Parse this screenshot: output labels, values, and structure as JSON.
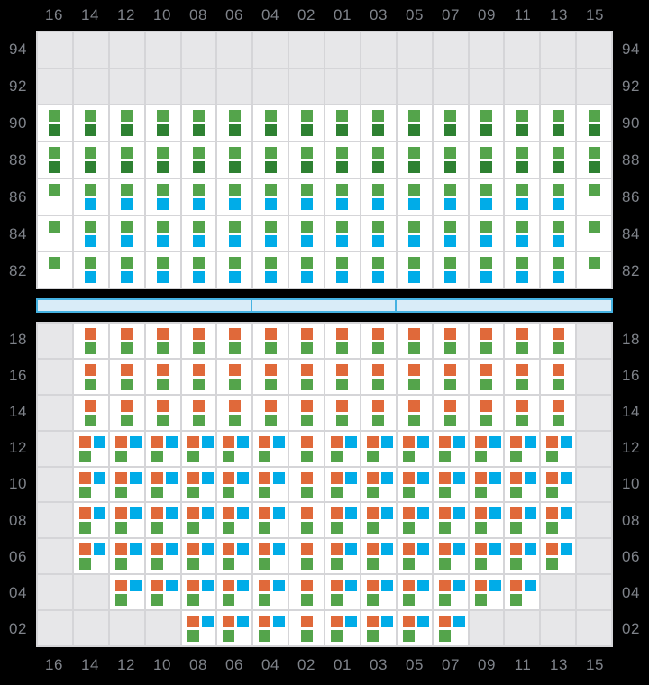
{
  "chart_data": {
    "type": "heatmap",
    "title": "",
    "columns": [
      "16",
      "14",
      "12",
      "10",
      "08",
      "06",
      "04",
      "02",
      "01",
      "03",
      "05",
      "07",
      "09",
      "11",
      "13",
      "15"
    ],
    "sections": [
      {
        "name": "upper",
        "tiers": [
          "94",
          "92",
          "90",
          "88",
          "86",
          "84",
          "82"
        ],
        "rows": [
          [
            "E",
            "E",
            "E",
            "E",
            "E",
            "E",
            "E",
            "E",
            "E",
            "E",
            "E",
            "E",
            "E",
            "E",
            "E",
            "E"
          ],
          [
            "E",
            "E",
            "E",
            "E",
            "E",
            "E",
            "E",
            "E",
            "E",
            "E",
            "E",
            "E",
            "E",
            "E",
            "E",
            "E"
          ],
          [
            "GG",
            "GG",
            "GG",
            "GG",
            "GG",
            "GG",
            "GG",
            "GG",
            "GG",
            "GG",
            "GG",
            "GG",
            "GG",
            "GG",
            "GG",
            "GG"
          ],
          [
            "GG",
            "GG",
            "GG",
            "GG",
            "GG",
            "GG",
            "GG",
            "GG",
            "GG",
            "GG",
            "GG",
            "GG",
            "GG",
            "GG",
            "GG",
            "GG"
          ],
          [
            "G",
            "GB",
            "GB",
            "GB",
            "GB",
            "GB",
            "GB",
            "GB",
            "GB",
            "GB",
            "GB",
            "GB",
            "GB",
            "GB",
            "GB",
            "G"
          ],
          [
            "G",
            "GB",
            "GB",
            "GB",
            "GB",
            "GB",
            "GB",
            "GB",
            "GB",
            "GB",
            "GB",
            "GB",
            "GB",
            "GB",
            "GB",
            "G"
          ],
          [
            "G",
            "GB",
            "GB",
            "GB",
            "GB",
            "GB",
            "GB",
            "GB",
            "GB",
            "GB",
            "GB",
            "GB",
            "GB",
            "GB",
            "GB",
            "G"
          ]
        ]
      },
      {
        "name": "lower",
        "tiers": [
          "18",
          "16",
          "14",
          "12",
          "10",
          "08",
          "06",
          "04",
          "02"
        ],
        "rows": [
          [
            "E",
            "OG",
            "OG",
            "OG",
            "OG",
            "OG",
            "OG",
            "OG",
            "OG",
            "OG",
            "OG",
            "OG",
            "OG",
            "OG",
            "OG",
            "E"
          ],
          [
            "E",
            "OG",
            "OG",
            "OG",
            "OG",
            "OG",
            "OG",
            "OG",
            "OG",
            "OG",
            "OG",
            "OG",
            "OG",
            "OG",
            "OG",
            "E"
          ],
          [
            "E",
            "OG",
            "OG",
            "OG",
            "OG",
            "OG",
            "OG",
            "OG",
            "OG",
            "OG",
            "OG",
            "OG",
            "OG",
            "OG",
            "OG",
            "E"
          ],
          [
            "E",
            "OBG",
            "OBG",
            "OBG",
            "OBG",
            "OBG",
            "OBG",
            "OG",
            "OBG",
            "OBG",
            "OBG",
            "OBG",
            "OBG",
            "OBG",
            "OBG",
            "E"
          ],
          [
            "E",
            "OBG",
            "OBG",
            "OBG",
            "OBG",
            "OBG",
            "OBG",
            "OG",
            "OBG",
            "OBG",
            "OBG",
            "OBG",
            "OBG",
            "OBG",
            "OBG",
            "E"
          ],
          [
            "E",
            "OBG",
            "OBG",
            "OBG",
            "OBG",
            "OBG",
            "OBG",
            "OG",
            "OBG",
            "OBG",
            "OBG",
            "OBG",
            "OBG",
            "OBG",
            "OBG",
            "E"
          ],
          [
            "E",
            "OBG",
            "OBG",
            "OBG",
            "OBG",
            "OBG",
            "OBG",
            "OG",
            "OBG",
            "OBG",
            "OBG",
            "OBG",
            "OBG",
            "OBG",
            "OBG",
            "E"
          ],
          [
            "E",
            "E",
            "OBG",
            "OBG",
            "OBG",
            "OBG",
            "OBG",
            "OG",
            "OBG",
            "OBG",
            "OBG",
            "OBG",
            "OBG",
            "OBG",
            "E",
            "E"
          ],
          [
            "E",
            "E",
            "E",
            "E",
            "OBG",
            "OBG",
            "OBG",
            "OG",
            "OBG",
            "OBG",
            "OBG",
            "OBG",
            "E",
            "E",
            "E",
            "E"
          ]
        ]
      }
    ],
    "cell_codes": {
      "E": [],
      "G": [
        [
          "top-center",
          "green"
        ]
      ],
      "GG": [
        [
          "top-center",
          "green"
        ],
        [
          "bottom-center",
          "dark_green"
        ]
      ],
      "GB": [
        [
          "top-center",
          "green"
        ],
        [
          "bottom-center",
          "blue"
        ]
      ],
      "OG": [
        [
          "top-center",
          "orange"
        ],
        [
          "bottom-center",
          "green"
        ]
      ],
      "OBG": [
        [
          "top-left",
          "orange"
        ],
        [
          "top-right",
          "blue"
        ],
        [
          "bottom-left",
          "green"
        ]
      ]
    },
    "separator_bar": {
      "segment_columns": [
        6,
        4,
        6
      ]
    },
    "colors": {
      "green": "#54a44b",
      "dark_green": "#2e8132",
      "blue": "#00ace8",
      "orange": "#e0693a",
      "bar_fill": "#d9ecf8",
      "bar_border": "#45b2e2",
      "cell_filled": "#ffffff",
      "cell_empty": "#e7e7e9",
      "grid_line": "#d5d5d8",
      "background": "#000000",
      "label_text": "#7f838a"
    },
    "layout": {
      "grid_on": true,
      "column_axis_positions": [
        "top",
        "bottom"
      ],
      "tier_axis_positions": [
        "left",
        "right"
      ]
    }
  }
}
